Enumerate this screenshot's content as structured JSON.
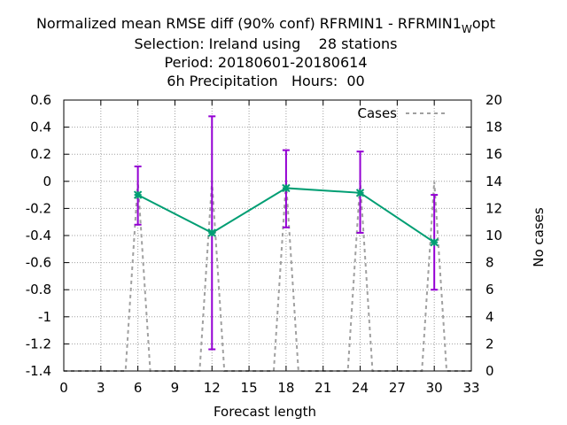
{
  "title": {
    "line1_main": "Normalized mean RMSE diff (90% conf) RFRMIN1 - RFRMIN1",
    "line1_sub": "W",
    "line1_tail": "opt",
    "line2": "Selection: Ireland using    28 stations",
    "line3": "Period: 20180601-20180614",
    "line4": "6h Precipitation   Hours:  00"
  },
  "chart_data": {
    "type": "line",
    "title": "Normalized mean RMSE diff (90% conf) RFRMIN1 - RFRMIN1 W opt",
    "xlabel": "Forecast length",
    "ylabel": "",
    "y2label": "No cases",
    "xlim": [
      0,
      33
    ],
    "ylim": [
      -1.4,
      0.6
    ],
    "y2lim": [
      0,
      20
    ],
    "xticks": [
      0,
      3,
      6,
      9,
      12,
      15,
      18,
      21,
      24,
      27,
      30,
      33
    ],
    "yticks": [
      0.6,
      0.4,
      0.2,
      0,
      -0.2,
      -0.4,
      -0.6,
      -0.8,
      -1,
      -1.2,
      -1.4
    ],
    "yticklabels": [
      "0.6",
      "0.4",
      "0.2",
      "0",
      "-0.2",
      "-0.4",
      "-0.6",
      "-0.8",
      "-1",
      "-1.2",
      "-1.4"
    ],
    "y2ticks": [
      20,
      18,
      16,
      14,
      12,
      10,
      8,
      6,
      4,
      2,
      0
    ],
    "grid": true,
    "legend_position": "top-right",
    "series": [
      {
        "x": [
          6,
          12,
          18,
          24,
          30
        ],
        "values": [
          -0.1,
          -0.38,
          -0.05,
          -0.085,
          -0.45
        ],
        "err_low": [
          -0.32,
          -1.24,
          -0.34,
          -0.38,
          -0.8
        ],
        "err_high": [
          0.11,
          0.48,
          0.23,
          0.22,
          -0.1
        ],
        "color": "#009e73",
        "error_color": "#9400d3"
      },
      {
        "name": "Cases",
        "axis": "y2",
        "style": "dashed",
        "color": "#a0a0a0",
        "x": [
          0,
          5,
          6,
          7,
          11,
          12,
          13,
          17,
          18,
          19,
          23,
          24,
          25,
          29,
          30,
          31,
          33
        ],
        "values": [
          0,
          0,
          14,
          0,
          0,
          14,
          0,
          0,
          14,
          0,
          0,
          14,
          0,
          0,
          14,
          0,
          0
        ]
      }
    ]
  }
}
